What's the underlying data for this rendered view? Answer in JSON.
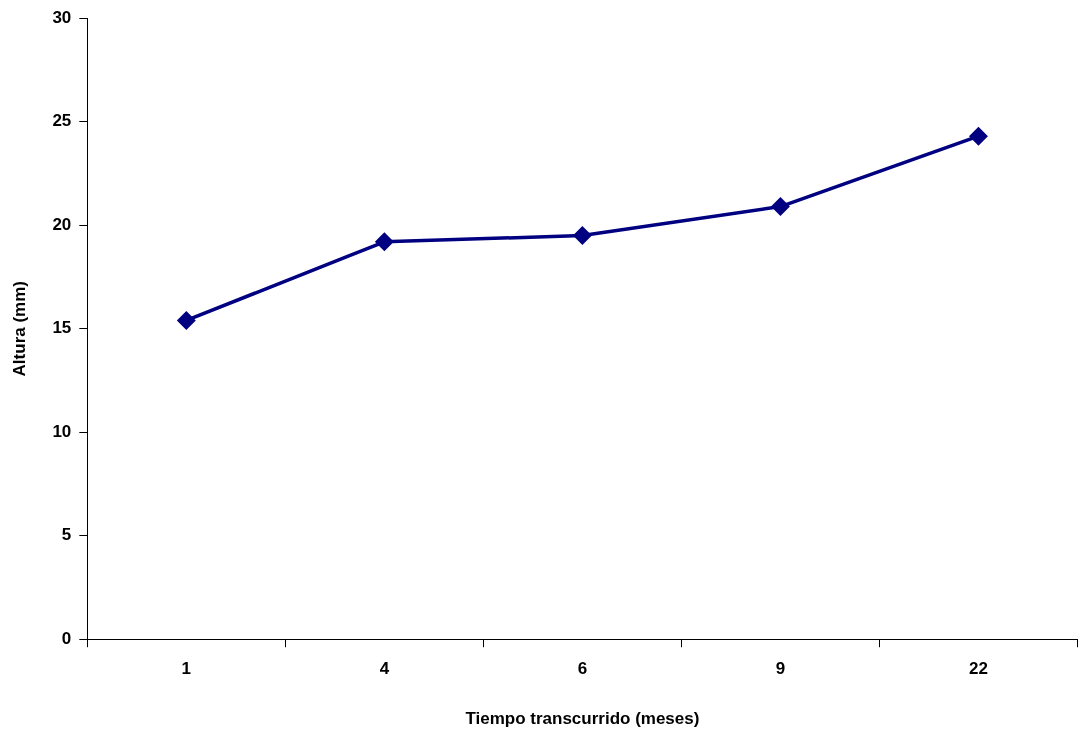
{
  "chart_data": {
    "type": "line",
    "xlabel": "Tiempo transcurrido (meses)",
    "ylabel": "Altura (mm)",
    "categories": [
      "1",
      "4",
      "6",
      "9",
      "22"
    ],
    "series": [
      {
        "color": "#000080",
        "values": [
          15.4,
          19.2,
          19.5,
          20.9,
          24.3
        ]
      }
    ],
    "ylim": [
      0,
      30
    ],
    "yticks": [
      0,
      5,
      10,
      15,
      20,
      25,
      30
    ],
    "grid": false,
    "legend": false,
    "marker": "diamond",
    "line_style": "solid"
  }
}
